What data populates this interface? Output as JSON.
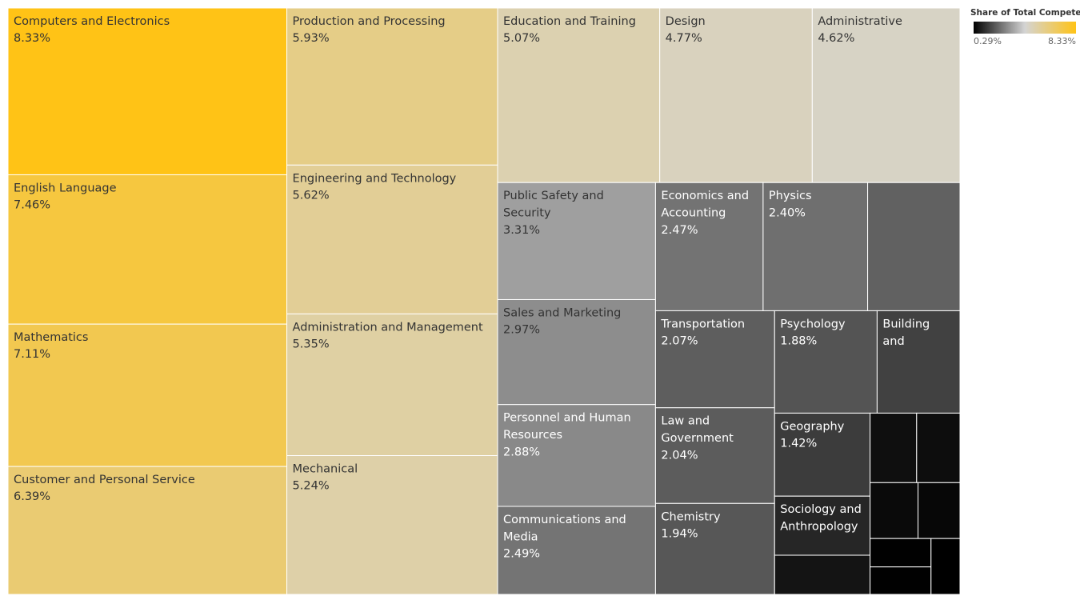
{
  "chart_data": {
    "type": "treemap",
    "legend_title": "Share of Total Compete..",
    "color_range": [
      0.29,
      8.33
    ],
    "color_range_labels": [
      "0.29%",
      "8.33%"
    ],
    "colors": [
      "#000000",
      "#d4d4d4",
      "#ffc316"
    ],
    "categories": [
      "Computers and Electronics",
      "English Language",
      "Mathematics",
      "Customer and Personal Service",
      "Production and Processing",
      "Engineering and Technology",
      "Administration and Management",
      "Mechanical",
      "Education and Training",
      "Design",
      "Administrative",
      "Public Safety and Security",
      "Sales and Marketing",
      "Personnel and Human Resources",
      "Communications and Media",
      "Economics and Accounting",
      "Physics",
      null,
      "Transportation",
      "Law and Government",
      "Chemistry",
      "Psychology",
      "Building and",
      "Geography",
      "Sociology and Anthropology",
      null,
      null,
      null,
      null,
      null,
      null,
      null,
      null
    ],
    "values": [
      8.33,
      7.46,
      7.11,
      6.39,
      5.93,
      5.62,
      5.35,
      5.24,
      5.07,
      4.77,
      4.62,
      3.31,
      2.97,
      2.88,
      2.49,
      2.47,
      2.4,
      2.12,
      2.07,
      2.04,
      1.94,
      1.88,
      1.52,
      1.42,
      1.01,
      0.67,
      0.58,
      0.54,
      0.48,
      0.42,
      0.31,
      0.3,
      0.29
    ],
    "value_labels": [
      "8.33%",
      "7.46%",
      "7.11%",
      "6.39%",
      "5.93%",
      "5.62%",
      "5.35%",
      "5.24%",
      "5.07%",
      "4.77%",
      "4.62%",
      "3.31%",
      "2.97%",
      "2.88%",
      "2.49%",
      "2.47%",
      "2.40%",
      null,
      "2.07%",
      "2.04%",
      "1.94%",
      "1.88%",
      null,
      "1.42%",
      null,
      null,
      null,
      null,
      null,
      null,
      null,
      null,
      null
    ]
  }
}
